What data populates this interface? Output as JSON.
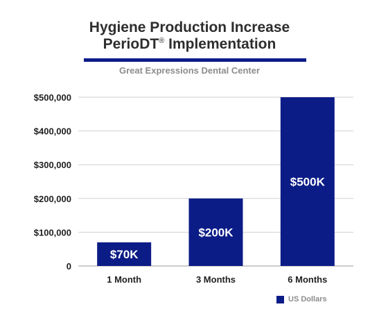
{
  "header": {
    "title_line1": "Hygiene Production Increase",
    "title_line2_main": "PerioDT",
    "title_line2_reg": "®",
    "title_line2_rest": " Implementation",
    "subtitle": "Great Expressions Dental Center"
  },
  "colors": {
    "bar": "#0c1c87",
    "rule": "#0c1c87",
    "grid": "#cfcfcf",
    "axis": "#999999"
  },
  "chart_data": {
    "type": "bar",
    "categories": [
      "1 Month",
      "3 Months",
      "6 Months"
    ],
    "series": [
      {
        "name": "US Dollars",
        "values": [
          70000,
          200000,
          500000
        ]
      }
    ],
    "data_labels": [
      "$70K",
      "$200K",
      "$500K"
    ],
    "ylim": [
      0,
      500000
    ],
    "yticks": [
      0,
      100000,
      200000,
      300000,
      400000,
      500000
    ],
    "ytick_labels": [
      "0",
      "$100,000",
      "$200,000",
      "$300,000",
      "$400,000",
      "$500,000"
    ],
    "grid": true,
    "legend_position": "bottom-right"
  }
}
